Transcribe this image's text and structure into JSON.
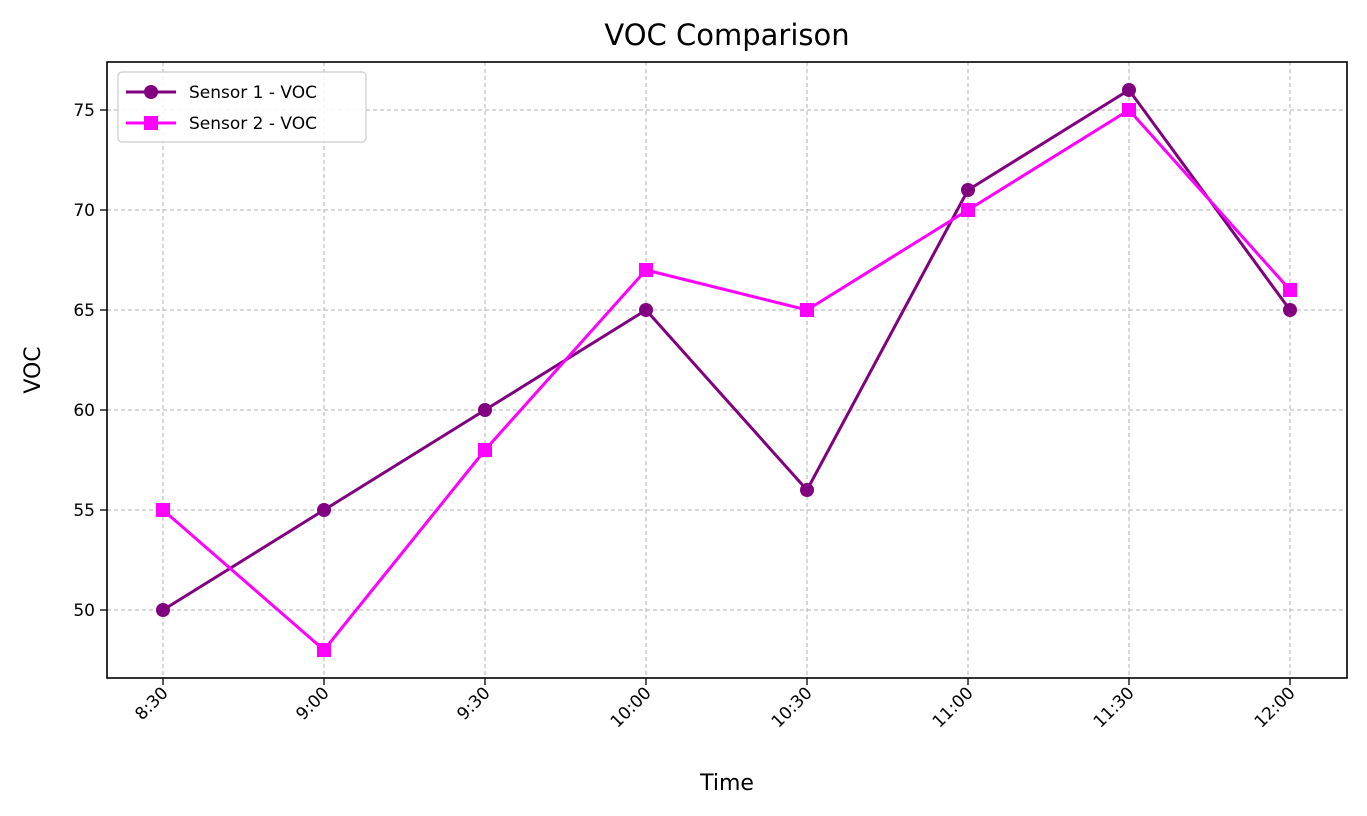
{
  "chart_data": {
    "type": "line",
    "title": "VOC Comparison",
    "xlabel": "Time",
    "ylabel": "VOC",
    "categories": [
      "8:30",
      "9:00",
      "9:30",
      "10:00",
      "10:30",
      "11:00",
      "11:30",
      "12:00"
    ],
    "series": [
      {
        "name": "Sensor 1 - VOC",
        "values": [
          50,
          55,
          60,
          65,
          56,
          71,
          76,
          65
        ],
        "color": "#800080",
        "marker": "circle"
      },
      {
        "name": "Sensor 2 - VOC",
        "values": [
          55,
          48,
          58,
          67,
          65,
          70,
          75,
          66
        ],
        "color": "#ff00ff",
        "marker": "square"
      }
    ],
    "yticks": [
      50,
      55,
      60,
      65,
      70,
      75
    ],
    "ylim": [
      46.6,
      77.4
    ],
    "grid": true,
    "legend_position": "top-left"
  }
}
